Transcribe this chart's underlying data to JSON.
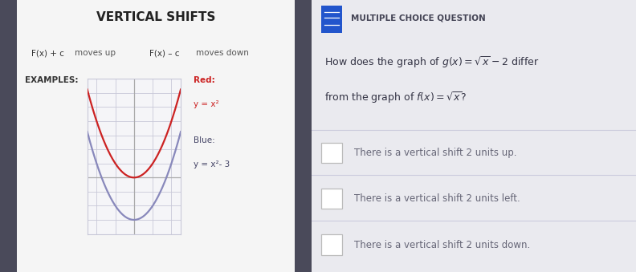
{
  "dark_sidebar_color": "#4a4a5a",
  "title": "VERTICAL SHIFTS",
  "red_color": "#cc2222",
  "blue_color": "#8888bb",
  "grid_color": "#c8c8d8",
  "axis_color": "#aaaaaa",
  "mcq_icon_color": "#2255cc",
  "mcq_header": "MULTIPLE CHOICE QUESTION",
  "choices": [
    "There is a vertical shift 2 units up.",
    "There is a vertical shift 2 units left.",
    "There is a vertical shift 2 units down."
  ],
  "choice_text_color": "#666677",
  "divider_color": "#ccccdd",
  "checkbox_color": "#bbbbbb",
  "left_panel_bg": "#f5f5f5",
  "right_panel_bg": "#eaeaef",
  "overall_bg": "#c0c0cc"
}
